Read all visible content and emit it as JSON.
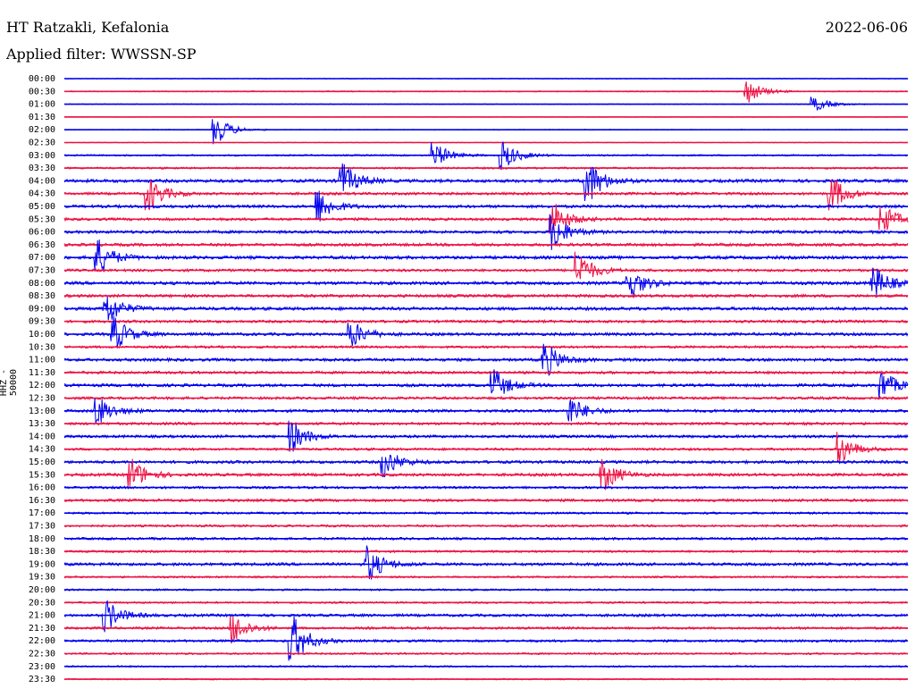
{
  "header": {
    "station": "HT Ratzakli, Kefalonia",
    "date": "2022-06-06",
    "filter": "Applied filter: WWSSN-SP"
  },
  "chart_data": {
    "type": "line",
    "title": "HT Ratzakli, Kefalonia",
    "ylabel": "HHZ - 50000",
    "trace_colors": [
      "#0000ee",
      "#ee1144"
    ],
    "rows": [
      {
        "time": "00:00",
        "amplitude": 0.15
      },
      {
        "time": "00:30",
        "amplitude": 0.2
      },
      {
        "time": "01:00",
        "amplitude": 0.15
      },
      {
        "time": "01:30",
        "amplitude": 0.1
      },
      {
        "time": "02:00",
        "amplitude": 0.15
      },
      {
        "time": "02:30",
        "amplitude": 0.12
      },
      {
        "time": "03:00",
        "amplitude": 0.3
      },
      {
        "time": "03:30",
        "amplitude": 0.35
      },
      {
        "time": "04:00",
        "amplitude": 0.6
      },
      {
        "time": "04:30",
        "amplitude": 0.5
      },
      {
        "time": "05:00",
        "amplitude": 0.55
      },
      {
        "time": "05:30",
        "amplitude": 0.5
      },
      {
        "time": "06:00",
        "amplitude": 0.55
      },
      {
        "time": "06:30",
        "amplitude": 0.55
      },
      {
        "time": "07:00",
        "amplitude": 0.6
      },
      {
        "time": "07:30",
        "amplitude": 0.5
      },
      {
        "time": "08:00",
        "amplitude": 0.6
      },
      {
        "time": "08:30",
        "amplitude": 0.55
      },
      {
        "time": "09:00",
        "amplitude": 0.6
      },
      {
        "time": "09:30",
        "amplitude": 0.5
      },
      {
        "time": "10:00",
        "amplitude": 0.55
      },
      {
        "time": "10:30",
        "amplitude": 0.45
      },
      {
        "time": "11:00",
        "amplitude": 0.55
      },
      {
        "time": "11:30",
        "amplitude": 0.5
      },
      {
        "time": "12:00",
        "amplitude": 0.55
      },
      {
        "time": "12:30",
        "amplitude": 0.5
      },
      {
        "time": "13:00",
        "amplitude": 0.55
      },
      {
        "time": "13:30",
        "amplitude": 0.5
      },
      {
        "time": "14:00",
        "amplitude": 0.5
      },
      {
        "time": "14:30",
        "amplitude": 0.45
      },
      {
        "time": "15:00",
        "amplitude": 0.55
      },
      {
        "time": "15:30",
        "amplitude": 0.55
      },
      {
        "time": "16:00",
        "amplitude": 0.45
      },
      {
        "time": "16:30",
        "amplitude": 0.5
      },
      {
        "time": "17:00",
        "amplitude": 0.4
      },
      {
        "time": "17:30",
        "amplitude": 0.4
      },
      {
        "time": "18:00",
        "amplitude": 0.45
      },
      {
        "time": "18:30",
        "amplitude": 0.4
      },
      {
        "time": "19:00",
        "amplitude": 0.55
      },
      {
        "time": "19:30",
        "amplitude": 0.35
      },
      {
        "time": "20:00",
        "amplitude": 0.35
      },
      {
        "time": "20:30",
        "amplitude": 0.35
      },
      {
        "time": "21:00",
        "amplitude": 0.5
      },
      {
        "time": "21:30",
        "amplitude": 0.45
      },
      {
        "time": "22:00",
        "amplitude": 0.45
      },
      {
        "time": "22:30",
        "amplitude": 0.35
      },
      {
        "time": "23:00",
        "amplitude": 0.3
      },
      {
        "time": "23:30",
        "amplitude": 0.25
      }
    ],
    "events": [
      {
        "time": "00:30",
        "x_fraction": 0.81,
        "amplitude": 1.0
      },
      {
        "time": "01:00",
        "x_fraction": 0.89,
        "amplitude": 0.6
      },
      {
        "time": "02:00",
        "x_fraction": 0.18,
        "amplitude": 1.2
      },
      {
        "time": "03:00",
        "x_fraction": 0.44,
        "amplitude": 1.0
      },
      {
        "time": "03:00",
        "x_fraction": 0.52,
        "amplitude": 1.2
      },
      {
        "time": "04:00",
        "x_fraction": 0.62,
        "amplitude": 2.0
      },
      {
        "time": "04:00",
        "x_fraction": 0.33,
        "amplitude": 1.5
      },
      {
        "time": "04:30",
        "x_fraction": 0.1,
        "amplitude": 1.5
      },
      {
        "time": "04:30",
        "x_fraction": 0.91,
        "amplitude": 1.5
      },
      {
        "time": "05:00",
        "x_fraction": 0.3,
        "amplitude": 1.5
      },
      {
        "time": "05:30",
        "x_fraction": 0.58,
        "amplitude": 1.5
      },
      {
        "time": "05:30",
        "x_fraction": 0.97,
        "amplitude": 1.2
      },
      {
        "time": "06:00",
        "x_fraction": 0.58,
        "amplitude": 1.5
      },
      {
        "time": "07:00",
        "x_fraction": 0.04,
        "amplitude": 1.5
      },
      {
        "time": "07:30",
        "x_fraction": 0.61,
        "amplitude": 1.5
      },
      {
        "time": "08:00",
        "x_fraction": 0.67,
        "amplitude": 1.4
      },
      {
        "time": "08:00",
        "x_fraction": 0.96,
        "amplitude": 1.4
      },
      {
        "time": "09:00",
        "x_fraction": 0.05,
        "amplitude": 1.4
      },
      {
        "time": "10:00",
        "x_fraction": 0.06,
        "amplitude": 1.4
      },
      {
        "time": "10:00",
        "x_fraction": 0.34,
        "amplitude": 1.2
      },
      {
        "time": "11:00",
        "x_fraction": 0.57,
        "amplitude": 1.5
      },
      {
        "time": "12:00",
        "x_fraction": 0.51,
        "amplitude": 1.3
      },
      {
        "time": "12:00",
        "x_fraction": 0.97,
        "amplitude": 1.2
      },
      {
        "time": "13:00",
        "x_fraction": 0.04,
        "amplitude": 1.2
      },
      {
        "time": "13:00",
        "x_fraction": 0.6,
        "amplitude": 1.2
      },
      {
        "time": "14:00",
        "x_fraction": 0.27,
        "amplitude": 1.3
      },
      {
        "time": "14:30",
        "x_fraction": 0.92,
        "amplitude": 1.3
      },
      {
        "time": "15:00",
        "x_fraction": 0.38,
        "amplitude": 1.2
      },
      {
        "time": "15:30",
        "x_fraction": 0.08,
        "amplitude": 1.3
      },
      {
        "time": "15:30",
        "x_fraction": 0.64,
        "amplitude": 1.3
      },
      {
        "time": "19:00",
        "x_fraction": 0.36,
        "amplitude": 1.5
      },
      {
        "time": "21:00",
        "x_fraction": 0.05,
        "amplitude": 1.3
      },
      {
        "time": "21:30",
        "x_fraction": 0.2,
        "amplitude": 1.3
      },
      {
        "time": "22:00",
        "x_fraction": 0.27,
        "amplitude": 2.2
      }
    ]
  }
}
